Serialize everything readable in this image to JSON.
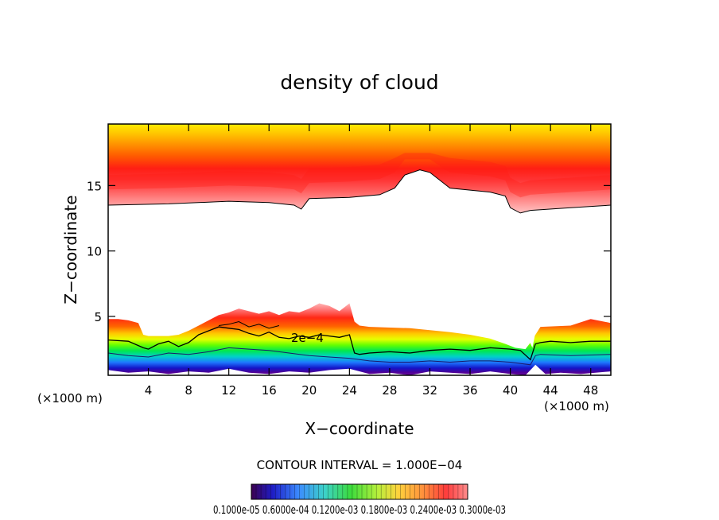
{
  "chart_data": {
    "type": "heatmap",
    "title": "density of cloud",
    "xlabel": "X−coordinate",
    "ylabel": "Z−coordinate",
    "x_unit_left": "(×1000 m)",
    "x_unit_right": "(×1000 m)",
    "xlim": [
      0,
      50
    ],
    "ylim": [
      0.5,
      19.7
    ],
    "x_ticks": [
      4,
      8,
      12,
      16,
      20,
      24,
      28,
      32,
      36,
      40,
      44,
      48
    ],
    "y_ticks": [
      5,
      10,
      15
    ],
    "contour_interval_text": "CONTOUR INTERVAL = 1.000E−04",
    "contour_label": "2e−4",
    "colorbar_labels_text": "0.1000e-05 0.6000e-04 0.1200e-03 0.1800e-03 0.2400e-03 0.3000e-03",
    "colorbar_levels": [
      1e-06,
      6e-05,
      0.00012,
      0.00018,
      0.00024,
      0.0003
    ],
    "upper_cloud_base": {
      "x": [
        0,
        6,
        12,
        16,
        18.5,
        19.2,
        20,
        24,
        27,
        28.5,
        29.5,
        31,
        32,
        34,
        38,
        39.5,
        40,
        41,
        42,
        46,
        50
      ],
      "z": [
        13.5,
        13.6,
        13.8,
        13.7,
        13.5,
        13.2,
        14.0,
        14.1,
        14.3,
        14.8,
        15.8,
        16.2,
        16.0,
        14.8,
        14.5,
        14.2,
        13.3,
        12.9,
        13.1,
        13.3,
        13.5
      ]
    },
    "lower_cloud_top": {
      "x": [
        0,
        1,
        2,
        3,
        3.5,
        4,
        6,
        7,
        8,
        9,
        10,
        11,
        12,
        13,
        14,
        15,
        16,
        17,
        18,
        19,
        20,
        21,
        22,
        23,
        24,
        24.5,
        25,
        26,
        30,
        34,
        36,
        38,
        39.5,
        40.5,
        41.5,
        42,
        43,
        46,
        48,
        50
      ],
      "z": [
        4.8,
        4.8,
        4.7,
        4.5,
        3.6,
        3.5,
        3.5,
        3.6,
        3.9,
        4.3,
        4.7,
        5.1,
        5.3,
        5.6,
        5.4,
        5.2,
        5.4,
        5.1,
        5.4,
        5.3,
        5.6,
        6.0,
        5.8,
        5.4,
        6.0,
        4.6,
        4.3,
        4.2,
        4.1,
        3.8,
        3.6,
        3.3,
        2.9,
        2.6,
        2.5,
        3.0,
        4.2,
        4.3,
        4.8,
        4.5
      ]
    },
    "lower_cloud_bottom": {
      "x": [
        0,
        2,
        4,
        6,
        8,
        10,
        12,
        14,
        16,
        18,
        20,
        22,
        24,
        26,
        28,
        30,
        32,
        34,
        36,
        38,
        40,
        41.5,
        42.5,
        43.5,
        45,
        47,
        50
      ],
      "z": [
        0.9,
        0.7,
        0.8,
        0.6,
        0.8,
        0.7,
        1.0,
        0.7,
        0.6,
        0.8,
        0.7,
        0.9,
        1.0,
        0.6,
        0.7,
        0.5,
        0.8,
        0.7,
        0.6,
        0.8,
        0.6,
        0.5,
        1.3,
        0.6,
        0.7,
        0.6,
        0.8
      ]
    },
    "notch_wedge": {
      "x": [
        38.8,
        40.8,
        42.2,
        42.8
      ],
      "z": [
        5.2,
        5.0,
        2.6,
        4.9
      ]
    },
    "contour_2e4": {
      "x": [
        0,
        2,
        3.5,
        4,
        5,
        6,
        7,
        8,
        9,
        10,
        11,
        12,
        13,
        14,
        15,
        16,
        17,
        18,
        19,
        20,
        21,
        22,
        23,
        24,
        24.5,
        25,
        26,
        28,
        30,
        32,
        34,
        36,
        38,
        40,
        41,
        42,
        42.5,
        43,
        44,
        46,
        48,
        50
      ],
      "z": [
        3.2,
        3.1,
        2.6,
        2.5,
        2.9,
        3.1,
        2.7,
        3.0,
        3.6,
        3.9,
        4.2,
        4.1,
        4.0,
        3.7,
        3.5,
        3.8,
        3.4,
        3.3,
        3.5,
        3.4,
        3.6,
        3.5,
        3.4,
        3.6,
        2.2,
        2.1,
        2.2,
        2.3,
        2.2,
        2.4,
        2.5,
        2.4,
        2.6,
        2.5,
        2.4,
        1.7,
        2.9,
        3.0,
        3.1,
        3.0,
        3.1,
        3.1
      ]
    },
    "contour_1e4": {
      "x": [
        0,
        2,
        4,
        6,
        8,
        10,
        12,
        14,
        16,
        18,
        20,
        22,
        24,
        26,
        28,
        30,
        32,
        34,
        36,
        38,
        40,
        42,
        42.5,
        43,
        46,
        50
      ],
      "z": [
        2.2,
        2.0,
        1.9,
        2.2,
        2.1,
        2.3,
        2.6,
        2.5,
        2.4,
        2.2,
        2.0,
        1.9,
        1.8,
        1.6,
        1.5,
        1.5,
        1.6,
        1.5,
        1.6,
        1.6,
        1.5,
        1.3,
        2.0,
        2.1,
        2.0,
        2.1
      ]
    },
    "contour_3e4": {
      "x": [
        11,
        12,
        13,
        14,
        15,
        16,
        17
      ],
      "z": [
        4.3,
        4.4,
        4.6,
        4.2,
        4.4,
        4.1,
        4.3
      ]
    }
  }
}
